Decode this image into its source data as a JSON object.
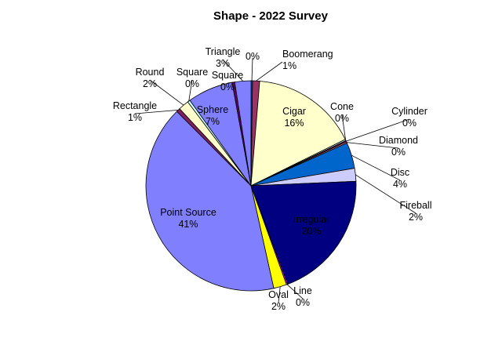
{
  "chart_data": {
    "type": "pie",
    "title": "Shape - 2022 Survey",
    "slices": [
      {
        "name": "Boomerang",
        "value": 1.1,
        "label": "1%",
        "color": "#993366"
      },
      {
        "name": "Cigar",
        "value": 16.4,
        "label": "16%",
        "color": "#ffffcc"
      },
      {
        "name": "Cone",
        "value": 0.2,
        "label": "0%",
        "color": "#ccffff"
      },
      {
        "name": "Cylinder",
        "value": 0.2,
        "label": "0%",
        "color": "#660066"
      },
      {
        "name": "Diamond",
        "value": 0.2,
        "label": "0%",
        "color": "#ff8080"
      },
      {
        "name": "Disc",
        "value": 4.0,
        "label": "4%",
        "color": "#0066cc"
      },
      {
        "name": "Fireball",
        "value": 2.0,
        "label": "2%",
        "color": "#ccccff"
      },
      {
        "name": "Irregular",
        "value": 20.0,
        "label": "20%",
        "color": "#000080"
      },
      {
        "name": "Line",
        "value": 0.2,
        "label": "0%",
        "color": "#ff00ff"
      },
      {
        "name": "Oval",
        "value": 2.0,
        "label": "2%",
        "color": "#ffff00"
      },
      {
        "name": "Point Source",
        "value": 41.0,
        "label": "41%",
        "color": "#8080ff"
      },
      {
        "name": "Rectangle",
        "value": 0.6,
        "label": "1%",
        "color": "#802060"
      },
      {
        "name": "Round",
        "value": 1.6,
        "label": "2%",
        "color": "#ffffcc"
      },
      {
        "name": "Square",
        "value": 0.4,
        "label": "0%",
        "color": "#ccffff"
      },
      {
        "name": "Sphere",
        "value": 7.0,
        "label": "7%",
        "color": "#8080ff"
      },
      {
        "name": "Square",
        "value": 0.4,
        "label": "0%",
        "color": "#660066"
      },
      {
        "name": "Triangle",
        "value": 2.5,
        "label": "3%",
        "color": "#8080ff"
      },
      {
        "name": "",
        "value": 0.2,
        "label": "0%",
        "color": "#0066cc"
      }
    ]
  }
}
